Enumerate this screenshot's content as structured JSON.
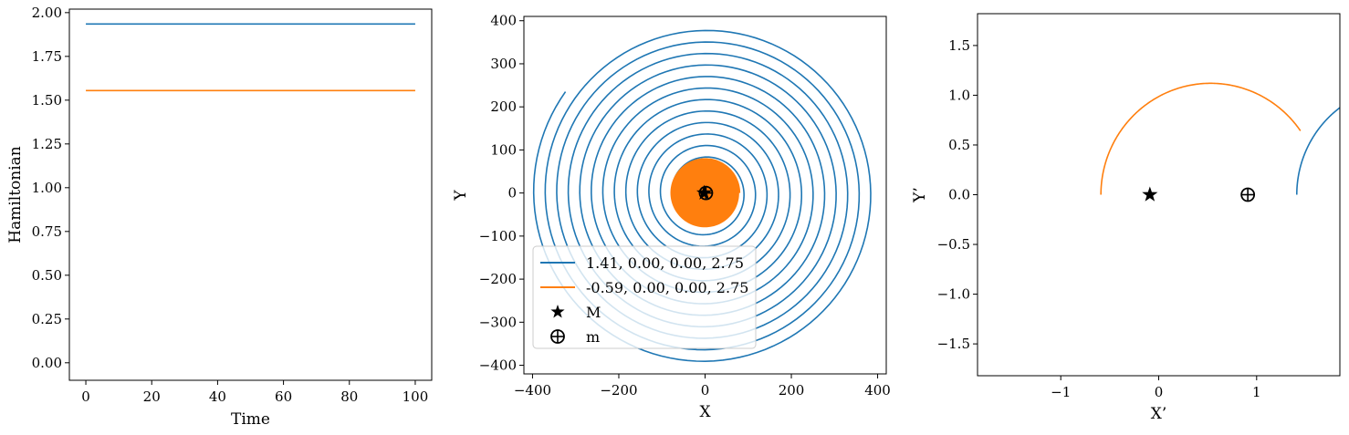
{
  "chart_data": [
    {
      "type": "line",
      "xlabel": "Time",
      "ylabel": "Hamiltonian",
      "xlim": [
        -5,
        105
      ],
      "ylim": [
        -0.1,
        2.02
      ],
      "xticks": [
        0,
        20,
        40,
        60,
        80,
        100
      ],
      "xtick_labels": [
        "0",
        "20",
        "40",
        "60",
        "80",
        "100"
      ],
      "yticks": [
        0.0,
        0.25,
        0.5,
        0.75,
        1.0,
        1.25,
        1.5,
        1.75,
        2.0
      ],
      "ytick_labels": [
        "0.00",
        "0.25",
        "0.50",
        "0.75",
        "1.00",
        "1.25",
        "1.50",
        "1.75",
        "2.00"
      ],
      "grid": false,
      "series": [
        {
          "x": [
            0,
            100
          ],
          "y": [
            1.935,
            1.935
          ],
          "color": "#1f77b4"
        },
        {
          "x": [
            0,
            100
          ],
          "y": [
            1.555,
            1.555
          ],
          "color": "#ff7f0e"
        }
      ]
    },
    {
      "type": "line",
      "xlabel": "X",
      "ylabel": "Y",
      "xlim": [
        -420,
        420
      ],
      "ylim": [
        -420,
        410
      ],
      "xticks": [
        -400,
        -200,
        0,
        200,
        400
      ],
      "xtick_labels": [
        "−400",
        "−200",
        "0",
        "200",
        "400"
      ],
      "yticks": [
        -400,
        -300,
        -200,
        -100,
        0,
        100,
        200,
        300,
        400
      ],
      "ytick_labels": [
        "−400",
        "−300",
        "−200",
        "−100",
        "0",
        "100",
        "200",
        "300",
        "400"
      ],
      "grid": false,
      "legend_position": "lower-left",
      "series": [
        {
          "name": "1.41, 0.00, 0.00, 2.75",
          "color": "#1f77b4",
          "shape": "spiral",
          "r_start": 10,
          "r_end": 400,
          "turns": 14.6
        },
        {
          "name": "-0.59, 0.00, 0.00, 2.75",
          "color": "#ff7f0e",
          "shape": "spiral",
          "r_start": 5,
          "r_end": 80,
          "turns": 28
        }
      ],
      "markers": [
        {
          "name": "M",
          "symbol": "star",
          "x": -2,
          "y": 0
        },
        {
          "name": "m",
          "symbol": "circle-plus",
          "x": 2,
          "y": 0
        }
      ]
    },
    {
      "type": "line",
      "xlabel": "X’",
      "ylabel": "Y’",
      "xlim": [
        -1.85,
        1.85
      ],
      "ylim": [
        -1.82,
        1.82
      ],
      "xticks": [
        -1,
        0,
        1
      ],
      "xtick_labels": [
        "−1",
        "0",
        "1"
      ],
      "yticks": [
        -1.5,
        -1.0,
        -0.5,
        0.0,
        0.5,
        1.0,
        1.5
      ],
      "ytick_labels": [
        "−1.5",
        "−1.0",
        "−0.5",
        "0.0",
        "0.5",
        "1.0",
        "1.5"
      ],
      "grid": false,
      "series": [
        {
          "color": "#ff7f0e",
          "shape": "arc",
          "center": [
            0.53,
            0.0
          ],
          "radius": 1.12,
          "angle_from": 180,
          "angle_to": 35
        },
        {
          "color": "#1f77b4",
          "shape": "arc",
          "center": [
            2.5,
            0.0
          ],
          "radius": 1.09,
          "angle_from": 180,
          "angle_to": 123
        }
      ],
      "markers": [
        {
          "name": "M",
          "symbol": "star",
          "x": -0.09,
          "y": 0
        },
        {
          "name": "m",
          "symbol": "circle-plus",
          "x": 0.91,
          "y": 0
        }
      ]
    }
  ]
}
